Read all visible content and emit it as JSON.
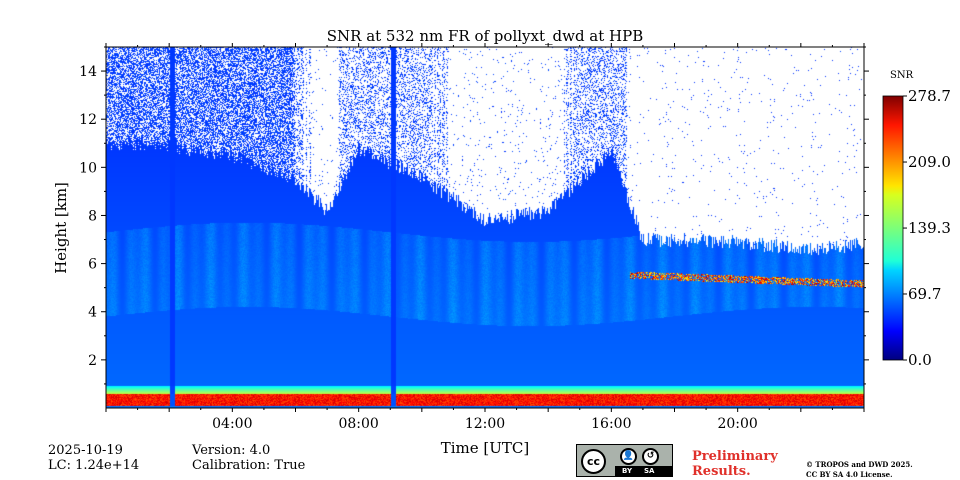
{
  "chart_data": {
    "type": "heatmap",
    "title": "SNR at 532 nm FR of pollyxt_dwd at HPB",
    "xlabel": "Time [UTC]",
    "ylabel": "Height [km]",
    "xlim": [
      0,
      24
    ],
    "ylim": [
      0,
      15
    ],
    "x_ticks": [
      "04:00",
      "08:00",
      "12:00",
      "16:00",
      "20:00"
    ],
    "x_tick_values": [
      4,
      8,
      12,
      16,
      20
    ],
    "y_ticks": [
      "2",
      "4",
      "6",
      "8",
      "10",
      "12",
      "14"
    ],
    "y_tick_values": [
      2,
      4,
      6,
      8,
      10,
      12,
      14
    ],
    "colorbar": {
      "label": "SNR",
      "min": 0.0,
      "max": 278.7,
      "ticks": [
        "0.0",
        "69.7",
        "139.3",
        "209.0",
        "278.7"
      ],
      "tick_values": [
        0.0,
        69.7,
        139.3,
        209.0,
        278.7
      ],
      "colormap": "jet"
    },
    "features": {
      "near_surface_high_snr_layer_km": [
        0.1,
        0.6
      ],
      "signal_gaps_utc": [
        2.1,
        9.1
      ],
      "aerosol_layer_top_km": [
        {
          "t": 0,
          "h": 11.0
        },
        {
          "t": 2,
          "h": 10.9
        },
        {
          "t": 4,
          "h": 10.5
        },
        {
          "t": 6,
          "h": 9.5
        },
        {
          "t": 7,
          "h": 8.2
        },
        {
          "t": 8,
          "h": 10.8
        },
        {
          "t": 10,
          "h": 9.6
        },
        {
          "t": 12,
          "h": 7.8
        },
        {
          "t": 14,
          "h": 8.2
        },
        {
          "t": 16,
          "h": 10.7
        },
        {
          "t": 17,
          "h": 7.0
        },
        {
          "t": 20,
          "h": 6.9
        },
        {
          "t": 22,
          "h": 6.6
        },
        {
          "t": 24,
          "h": 6.8
        }
      ],
      "cloud_layers": [
        {
          "t_start": 16.6,
          "t_end": 24,
          "h": 5.5,
          "snr": "high"
        }
      ]
    }
  },
  "footer": {
    "date": "2025-10-19",
    "lc": "LC: 1.24e+14",
    "version": "Version: 4.0",
    "calibration": "Calibration: True",
    "prelim_line1": "Preliminary",
    "prelim_line2": "Results.",
    "copyright_line1": "© TROPOS and DWD 2025.",
    "copyright_line2": "CC BY SA 4.0 License.",
    "license_badge": {
      "cc": "cc",
      "by": "BY",
      "sa": "SA"
    }
  },
  "colors": {
    "background": "#ffffff",
    "no_data": "#ffffff",
    "prelim_text": "#e0302a"
  }
}
